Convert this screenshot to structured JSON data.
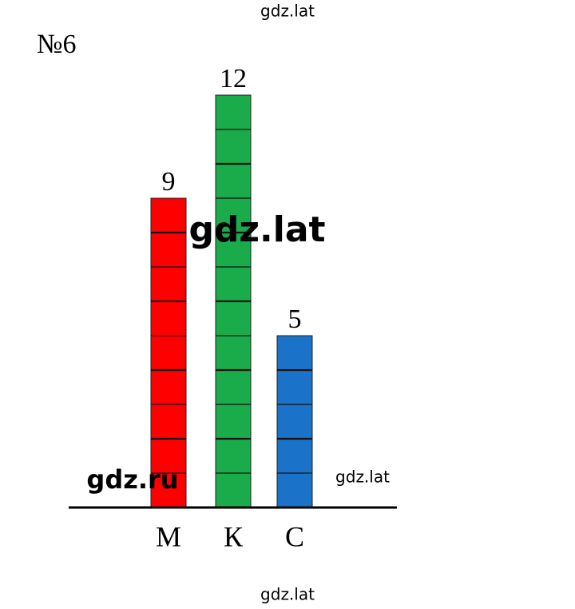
{
  "chart_data": {
    "type": "bar",
    "title": "№6",
    "categories": [
      "М",
      "К",
      "С"
    ],
    "values": [
      9,
      12,
      5
    ],
    "colors": [
      "#ff0000",
      "#1aab4a",
      "#1a73c8"
    ]
  },
  "watermarks": [
    "gdz.lat",
    "gdz.lat",
    "gdz.ru",
    "gdz.lat",
    "gdz.lat"
  ]
}
